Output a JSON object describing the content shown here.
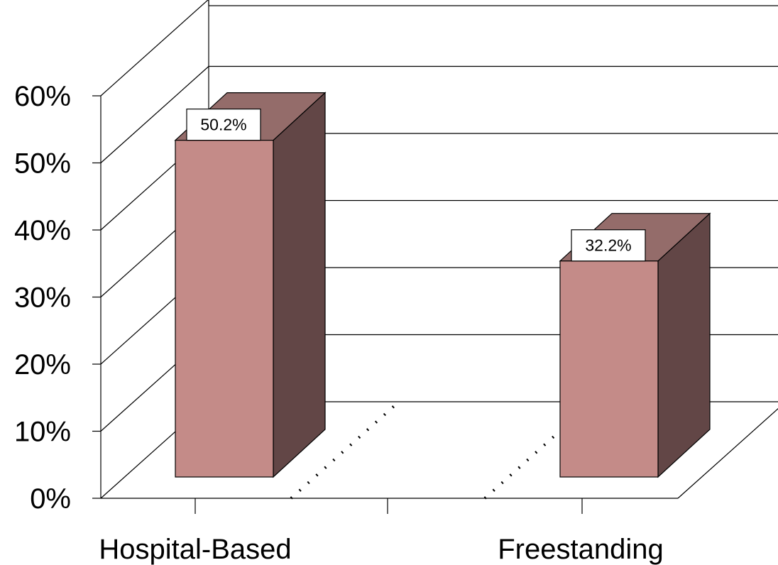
{
  "chart_data": {
    "type": "bar",
    "style": "3d",
    "title": "",
    "xlabel": "",
    "ylabel": "",
    "categories": [
      "Hospital-Based",
      "Freestanding"
    ],
    "series": [
      {
        "values": [
          50.2,
          32.2
        ],
        "data_labels": [
          "50.2%",
          "32.2%"
        ]
      }
    ],
    "ylim": [
      0,
      60
    ],
    "yticks": [
      0,
      10,
      20,
      30,
      40,
      50,
      60
    ],
    "ytick_labels": [
      "0%",
      "10%",
      "20%",
      "30%",
      "40%",
      "50%",
      "60%"
    ],
    "grid": true,
    "legend": "none",
    "colors": {
      "bar_front": "#C48B88",
      "bar_side": "#624646",
      "bar_top": "#946C6A",
      "grid": "#000000",
      "label_box": "#FFFFFF"
    }
  }
}
